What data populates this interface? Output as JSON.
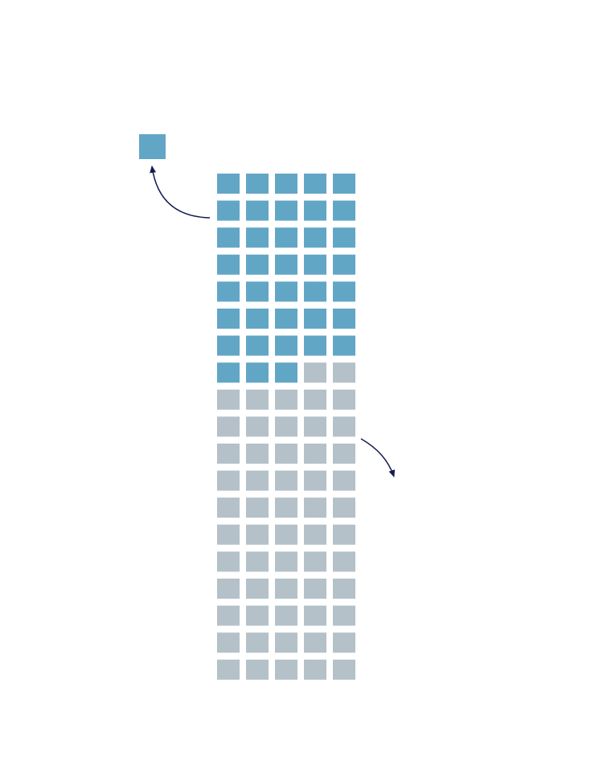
{
  "chart_data": {
    "type": "waffle",
    "columns": 5,
    "rows": 19,
    "total_cells": 95,
    "highlighted_cells": 38,
    "other_cells": 57,
    "colors": {
      "highlighted": "#62a6c6",
      "other": "#b5c1c8",
      "arrow": "#151a4f"
    },
    "legend": {
      "marker_color": "#62a6c6",
      "label": ""
    }
  }
}
